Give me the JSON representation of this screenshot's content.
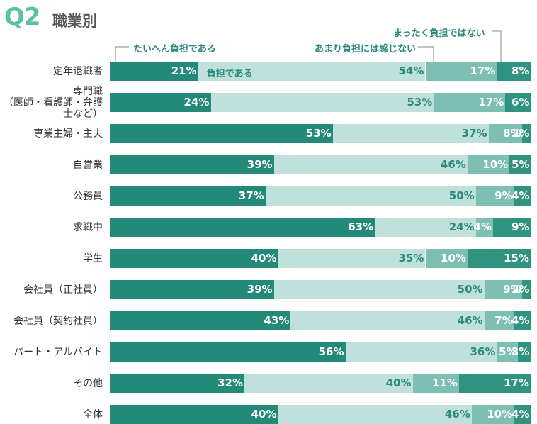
{
  "chart_data": {
    "type": "bar",
    "orientation": "horizontal",
    "stacked": true,
    "title": "Q2",
    "subtitle": "職業別",
    "xlim": [
      0,
      100
    ],
    "categories": [
      "定年退職者",
      "専門職\n（医師・看護師・弁護士など）",
      "専業主婦・主夫",
      "自営業",
      "公務員",
      "求職中",
      "学生",
      "会社員（正社員）",
      "会社員（契約社員）",
      "パート・アルバイト",
      "その他",
      "全体"
    ],
    "series": [
      {
        "name": "たいへん負担である",
        "color": "#238a7a",
        "label_color": "#ffffff",
        "values": [
          21,
          24,
          53,
          39,
          37,
          63,
          40,
          39,
          43,
          56,
          32,
          40
        ],
        "value_labels": [
          "21%",
          "24%",
          "53%",
          "39%",
          "37%",
          "63%",
          "40%",
          "39%",
          "43%",
          "56%",
          "32%",
          "40%"
        ]
      },
      {
        "name": "負担である",
        "color": "#c0e1db",
        "label_color": "#2b8a78",
        "values": [
          54,
          53,
          37,
          46,
          50,
          24,
          35,
          50,
          46,
          36,
          40,
          46
        ],
        "value_labels": [
          "54%",
          "53%",
          "37%",
          "46%",
          "50%",
          "24%",
          "35%",
          "50%",
          "46%",
          "36%",
          "40%",
          "46%"
        ]
      },
      {
        "name": "あまり負担には感じない",
        "color": "#7dbfb2",
        "label_color": "#ffffff",
        "values": [
          17,
          17,
          8,
          10,
          9,
          4,
          10,
          9,
          7,
          5,
          11,
          10
        ],
        "value_labels": [
          "17%",
          "17%",
          "8%",
          "10%",
          "9%",
          "4%",
          "10%",
          "9%",
          "7%",
          "5%",
          "11%",
          "10%"
        ]
      },
      {
        "name": "まったく負担ではない",
        "color": "#2f9380",
        "label_color": "#ffffff",
        "values": [
          8,
          6,
          2,
          5,
          4,
          9,
          15,
          2,
          4,
          3,
          17,
          4
        ],
        "value_labels": [
          "8%",
          "6%",
          "2%",
          "5%",
          "4%",
          "9%",
          "15%",
          "2%",
          "4%",
          "3%",
          "17%",
          "4%"
        ]
      }
    ]
  }
}
